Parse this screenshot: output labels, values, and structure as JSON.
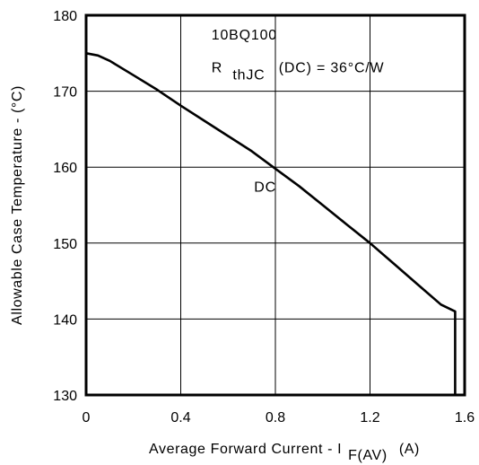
{
  "chart_data": {
    "type": "line",
    "title": "",
    "xlabel_main": "Average Forward Current - I",
    "xlabel_sub": "F(AV)",
    "xlabel_unit": "(A)",
    "ylabel": "Allowable Case Temperature - (°C)",
    "xlim": [
      0,
      1.6
    ],
    "ylim": [
      130,
      180
    ],
    "x_ticks": [
      0,
      0.4,
      0.8,
      1.2,
      1.6
    ],
    "x_tick_labels": [
      "0",
      "0.4",
      "0.8",
      "1.2",
      "1.6"
    ],
    "y_ticks": [
      130,
      140,
      150,
      160,
      170,
      180
    ],
    "y_tick_labels": [
      "130",
      "140",
      "150",
      "160",
      "170",
      "180"
    ],
    "grid": true,
    "legend": "none",
    "series": [
      {
        "name": "DC",
        "x": [
          0,
          0.05,
          0.1,
          0.2,
          0.3,
          0.4,
          0.5,
          0.6,
          0.7,
          0.8,
          0.9,
          1.0,
          1.1,
          1.2,
          1.3,
          1.4,
          1.5,
          1.56,
          1.56
        ],
        "y": [
          175,
          174.7,
          174,
          172.1,
          170.2,
          168.1,
          166.1,
          164.1,
          162.1,
          159.8,
          157.5,
          155.0,
          152.5,
          150.0,
          147.3,
          144.6,
          141.9,
          141,
          130
        ]
      }
    ],
    "annotations": {
      "part_number": "10BQ100",
      "rth_prefix": "R",
      "rth_sub": "thJC",
      "rth_suffix": "(DC) = 36°C/W",
      "curve_label": "DC"
    },
    "annotation_anchors": {
      "part_number": [
        0.53,
        176.8
      ],
      "rthjc": [
        0.53,
        172.5
      ],
      "curve_label": [
        0.71,
        156.8
      ]
    },
    "colors": {
      "line": "#000000",
      "grid": "#000000",
      "background": "#ffffff"
    }
  }
}
